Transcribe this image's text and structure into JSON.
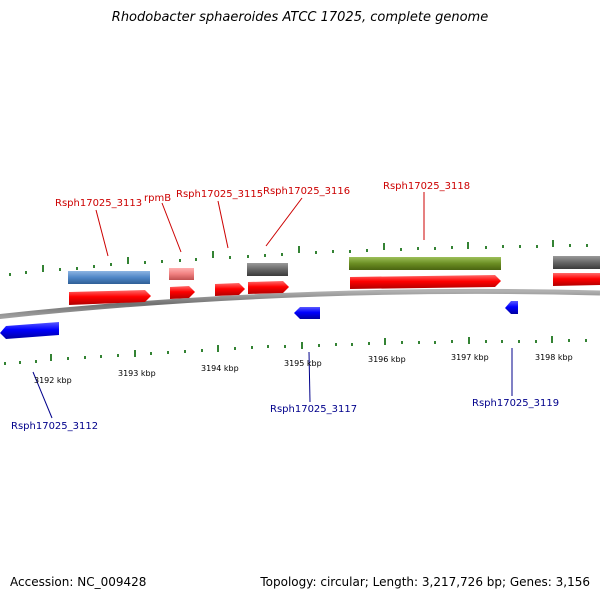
{
  "title": "Rhodobacter sphaeroides ATCC 17025, complete genome",
  "accession": "Accession: NC_009428",
  "stats": "Topology: circular; Length: 3,217,726 bp; Genes: 3,156",
  "colors": {
    "backbone": "#808080",
    "forward_cds": "#ff0000",
    "reverse_cds": "#0000ff",
    "tick": "#006400",
    "label_forward": "#cc0000",
    "label_reverse": "#00008b",
    "feature_steel": "#4f86c6",
    "feature_pink": "#f08080",
    "feature_gray": "#666666",
    "feature_olive": "#6b8e23"
  },
  "tick_labels": [
    {
      "text": "3192 kbp",
      "kbp": 3192
    },
    {
      "text": "3193 kbp",
      "kbp": 3193
    },
    {
      "text": "3194 kbp",
      "kbp": 3194
    },
    {
      "text": "3195 kbp",
      "kbp": 3195
    },
    {
      "text": "3196 kbp",
      "kbp": 3196
    },
    {
      "text": "3197 kbp",
      "kbp": 3197
    },
    {
      "text": "3198 kbp",
      "kbp": 3198
    }
  ],
  "forward_labels": [
    "Rsph17025_3113",
    "rpmB",
    "Rsph17025_3115",
    "Rsph17025_3116",
    "Rsph17025_3118"
  ],
  "reverse_labels": [
    "Rsph17025_3112",
    "Rsph17025_3117",
    "Rsph17025_3119"
  ],
  "feature_colors_used": [
    "steel",
    "pink",
    "gray",
    "olive",
    "gray"
  ]
}
